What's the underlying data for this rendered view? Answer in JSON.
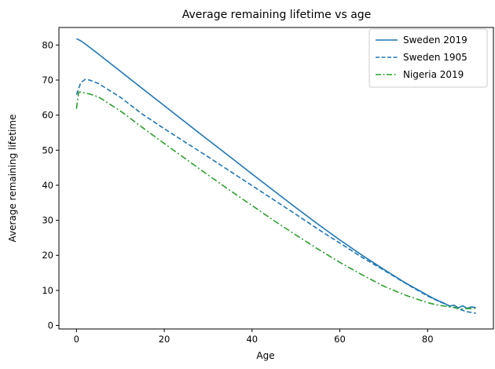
{
  "chart_data": {
    "type": "line",
    "title": "Average remaining lifetime vs age",
    "xlabel": "Age",
    "ylabel": "Average remaining lifetime",
    "xlim": [
      -4,
      95
    ],
    "ylim": [
      -1,
      85
    ],
    "xticks": [
      0,
      20,
      40,
      60,
      80
    ],
    "yticks": [
      0,
      10,
      20,
      30,
      40,
      50,
      60,
      70,
      80
    ],
    "grid": false,
    "legend_position": "top-right",
    "series": [
      {
        "name": "Sweden 2019",
        "color": "#1f77b4",
        "dash": "solid",
        "x": [
          0,
          1,
          2,
          5,
          10,
          15,
          20,
          25,
          30,
          35,
          40,
          45,
          50,
          55,
          60,
          65,
          70,
          75,
          80,
          82,
          84,
          85,
          86,
          87,
          88,
          89,
          90,
          91
        ],
        "y": [
          81.8,
          81.2,
          80.3,
          77.4,
          72.5,
          67.6,
          62.7,
          57.8,
          52.9,
          48.1,
          43.2,
          38.4,
          33.6,
          28.9,
          24.4,
          20.1,
          16.0,
          12.1,
          8.6,
          7.3,
          6.2,
          5.5,
          5.8,
          5.0,
          5.6,
          4.9,
          5.3,
          5.1
        ]
      },
      {
        "name": "Sweden 1905",
        "color": "#1f77b4",
        "dash": "dashed",
        "x": [
          0,
          1,
          2,
          3,
          5,
          10,
          15,
          20,
          25,
          30,
          35,
          40,
          45,
          50,
          55,
          60,
          65,
          70,
          75,
          80,
          82,
          84,
          85,
          86,
          87,
          88,
          89,
          90,
          91
        ],
        "y": [
          65.8,
          69.3,
          70.2,
          70.0,
          69.0,
          65.1,
          60.3,
          56.1,
          52.1,
          48.1,
          44.0,
          39.9,
          35.8,
          31.7,
          27.5,
          23.5,
          19.5,
          15.8,
          12.0,
          8.4,
          7.2,
          6.1,
          5.6,
          5.2,
          4.7,
          4.3,
          3.9,
          3.7,
          3.5
        ]
      },
      {
        "name": "Nigeria 2019",
        "color": "#2ca02c",
        "dash": "dashdot",
        "x": [
          0,
          0.5,
          1,
          2,
          3,
          5,
          10,
          15,
          20,
          25,
          30,
          35,
          40,
          45,
          50,
          55,
          60,
          65,
          70,
          75,
          80,
          82,
          84,
          85,
          86,
          87,
          88,
          89,
          90,
          91
        ],
        "y": [
          61.8,
          66.5,
          66.6,
          66.3,
          66.0,
          65.2,
          61.2,
          56.5,
          51.9,
          47.4,
          42.9,
          38.5,
          34.2,
          29.9,
          25.8,
          21.8,
          18.0,
          14.5,
          11.2,
          8.6,
          6.5,
          5.9,
          5.5,
          5.3,
          5.1,
          4.9,
          4.7,
          4.8,
          4.8,
          4.9
        ]
      }
    ]
  }
}
